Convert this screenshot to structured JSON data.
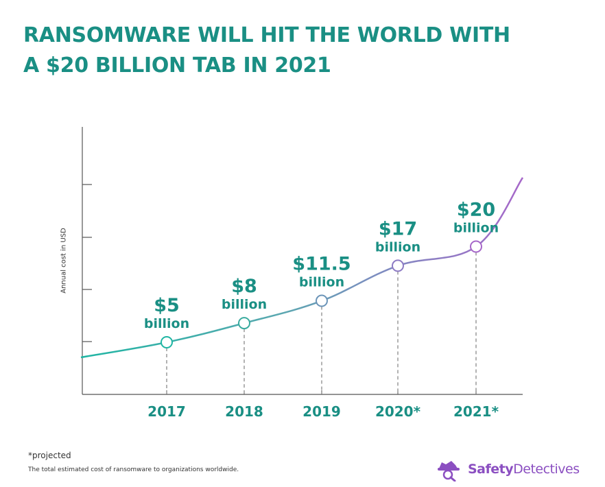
{
  "title_line1": "RANSOMWARE WILL HIT THE WORLD WITH",
  "title_line2": "A $20 BILLION TAB IN 2021",
  "chart_data": {
    "type": "line",
    "ylabel": "Annual cost in USD",
    "xlabel": "",
    "categories": [
      "2017",
      "2018",
      "2019",
      "2020*",
      "2021*"
    ],
    "values": [
      5,
      8,
      11.5,
      17,
      20
    ],
    "point_labels": [
      {
        "amount": "$5",
        "unit": "billion"
      },
      {
        "amount": "$8",
        "unit": "billion"
      },
      {
        "amount": "$11.5",
        "unit": "billion"
      },
      {
        "amount": "$17",
        "unit": "billion"
      },
      {
        "amount": "$20",
        "unit": "billion"
      }
    ],
    "grid": false,
    "colors": {
      "start": "#1fb5a3",
      "middle": "#7a8fbf",
      "end": "#a667c9",
      "label": "#1a8f84"
    }
  },
  "footnote": "*projected",
  "description": "The total estimated cost of ransomware to organizations worldwide.",
  "logo": {
    "part1": "Safety",
    "part2": "Detectives",
    "icon": "detective-hat-icon"
  }
}
